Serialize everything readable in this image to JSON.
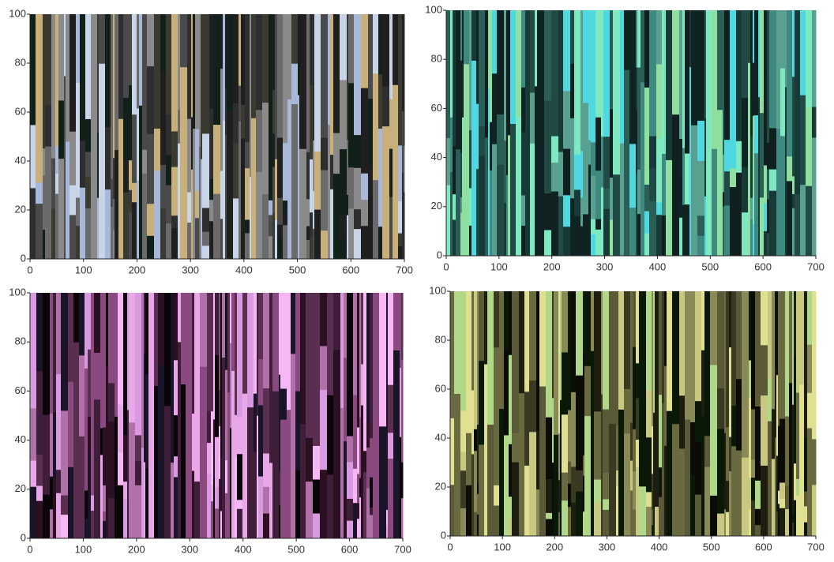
{
  "chart_data": [
    {
      "type": "image",
      "xlim": [
        0,
        700
      ],
      "ylim": [
        0,
        100
      ],
      "xticks": [
        0,
        100,
        200,
        300,
        400,
        500,
        600,
        700
      ],
      "yticks": [
        0,
        20,
        40,
        60,
        80,
        100
      ],
      "colors": [
        "#1f1f1f",
        "#2e2e2e",
        "#4a4a4a",
        "#6b6b6b",
        "#8a8a8a",
        "#a8b8d8",
        "#c8d4e8",
        "#c9b07a",
        "#3a3a30",
        "#112018"
      ]
    },
    {
      "type": "image",
      "xlim": [
        0,
        700
      ],
      "ylim": [
        0,
        100
      ],
      "xticks": [
        0,
        100,
        200,
        300,
        400,
        500,
        600,
        700
      ],
      "yticks": [
        0,
        20,
        40,
        60,
        80,
        100
      ],
      "colors": [
        "#0f2422",
        "#173a36",
        "#2a5e57",
        "#3f8a80",
        "#4fd8e0",
        "#7ee8c0",
        "#5aa090",
        "#224a44",
        "#8fe0a0",
        "#102020"
      ]
    },
    {
      "type": "image",
      "xlim": [
        0,
        700
      ],
      "ylim": [
        0,
        100
      ],
      "xticks": [
        0,
        100,
        200,
        300,
        400,
        500,
        600,
        700
      ],
      "yticks": [
        0,
        20,
        40,
        60,
        80,
        100
      ],
      "colors": [
        "#0a0508",
        "#2a1020",
        "#5a2e50",
        "#8a4a80",
        "#b070a8",
        "#f5b8f5",
        "#d89ae0",
        "#1a1428",
        "#3e1e38",
        "#e8a8e8"
      ]
    },
    {
      "type": "image",
      "xlim": [
        0,
        700
      ],
      "ylim": [
        0,
        100
      ],
      "xticks": [
        0,
        100,
        200,
        300,
        400,
        500,
        600,
        700
      ],
      "yticks": [
        0,
        20,
        40,
        60,
        80,
        100
      ],
      "colors": [
        "#0c0c06",
        "#1e1e10",
        "#3a3a22",
        "#5a5a38",
        "#8a8a58",
        "#c8c880",
        "#e0e090",
        "#b0d888",
        "#0a1808",
        "#6a6a40"
      ]
    }
  ]
}
